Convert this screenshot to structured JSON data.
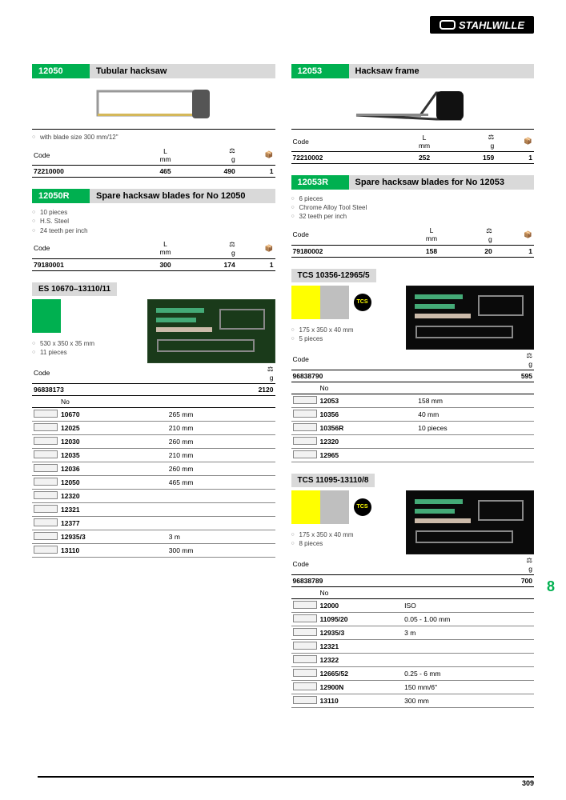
{
  "brand": "STAHLWILLE",
  "page_number": "309",
  "chapter": "8",
  "colors": {
    "accent_green": "#00b050",
    "accent_yellow": "#ffff00",
    "header_gray": "#d9d9d9",
    "swatch_gray": "#bfbfbf"
  },
  "left": [
    {
      "code": "12050",
      "title": "Tubular hacksaw",
      "style": "green",
      "notes": [
        "with blade size 300 mm/12\""
      ],
      "has_prodimg": true,
      "table": {
        "head": [
          "Code",
          "L\nmm",
          "⚖\ng",
          "📦"
        ],
        "align": [
          "l",
          "c",
          "r",
          "r"
        ],
        "rows": [
          [
            "72210000",
            "465",
            "490",
            "1"
          ]
        ]
      }
    },
    {
      "code": "12050R",
      "title": "Spare hacksaw blades for No 12050",
      "style": "green",
      "notes": [
        "10 pieces",
        "H.S. Steel",
        "24 teeth per inch"
      ],
      "table": {
        "head": [
          "Code",
          "L\nmm",
          "⚖\ng",
          "📦"
        ],
        "align": [
          "l",
          "c",
          "r",
          "r"
        ],
        "rows": [
          [
            "79180001",
            "300",
            "174",
            "1"
          ]
        ]
      }
    },
    {
      "code": "ES 10670–13110/11",
      "title": "",
      "style": "gray",
      "swatches": [
        "#00b050"
      ],
      "setimg": "light",
      "notes": [
        "530 x 350 x 35 mm",
        "11 pieces"
      ],
      "table": {
        "head": [
          "Code",
          "⚖\ng"
        ],
        "align": [
          "l",
          "r"
        ],
        "rows": [
          [
            "96838173",
            "2120"
          ]
        ]
      },
      "contents": {
        "head": [
          "",
          "No",
          ""
        ],
        "rows": [
          [
            "icon",
            "10670",
            "265 mm"
          ],
          [
            "icon",
            "12025",
            "210 mm"
          ],
          [
            "icon",
            "12030",
            "260 mm"
          ],
          [
            "icon",
            "12035",
            "210 mm"
          ],
          [
            "icon",
            "12036",
            "260 mm"
          ],
          [
            "icon",
            "12050",
            "465 mm"
          ],
          [
            "icon",
            "12320",
            ""
          ],
          [
            "icon",
            "12321",
            ""
          ],
          [
            "icon",
            "12377",
            ""
          ],
          [
            "icon",
            "12935/3",
            "3 m"
          ],
          [
            "icon",
            "13110",
            "300 mm"
          ]
        ]
      }
    }
  ],
  "right": [
    {
      "code": "12053",
      "title": "Hacksaw frame",
      "style": "green",
      "has_prodimg": true,
      "table": {
        "head": [
          "Code",
          "L\nmm",
          "⚖\ng",
          "📦"
        ],
        "align": [
          "l",
          "c",
          "r",
          "r"
        ],
        "rows": [
          [
            "72210002",
            "252",
            "159",
            "1"
          ]
        ]
      }
    },
    {
      "code": "12053R",
      "title": "Spare hacksaw blades for No 12053",
      "style": "green",
      "notes": [
        "6 pieces",
        "Chrome Alloy Tool Steel",
        "32 teeth per inch"
      ],
      "table": {
        "head": [
          "Code",
          "L\nmm",
          "⚖\ng",
          "📦"
        ],
        "align": [
          "l",
          "c",
          "r",
          "r"
        ],
        "rows": [
          [
            "79180002",
            "158",
            "20",
            "1"
          ]
        ]
      }
    },
    {
      "code": "TCS 10356-12965/5",
      "title": "",
      "style": "gray",
      "swatches": [
        "#ffff00",
        "#bfbfbf"
      ],
      "tcs": true,
      "setimg": "dark",
      "notes": [
        "175 x 350 x 40 mm",
        "5 pieces"
      ],
      "table": {
        "head": [
          "Code",
          "⚖\ng"
        ],
        "align": [
          "l",
          "r"
        ],
        "rows": [
          [
            "96838790",
            "595"
          ]
        ]
      },
      "contents": {
        "head": [
          "",
          "No",
          ""
        ],
        "rows": [
          [
            "icon",
            "12053",
            "158 mm"
          ],
          [
            "icon",
            "10356",
            "40 mm"
          ],
          [
            "icon",
            "10356R",
            "10 pieces"
          ],
          [
            "icon",
            "12320",
            ""
          ],
          [
            "icon",
            "12965",
            ""
          ]
        ]
      }
    },
    {
      "code": "TCS 11095-13110/8",
      "title": "",
      "style": "gray",
      "swatches": [
        "#ffff00",
        "#bfbfbf"
      ],
      "tcs": true,
      "setimg": "dark",
      "notes": [
        "175 x 350 x 40 mm",
        "8 pieces"
      ],
      "table": {
        "head": [
          "Code",
          "⚖\ng"
        ],
        "align": [
          "l",
          "r"
        ],
        "rows": [
          [
            "96838789",
            "700"
          ]
        ]
      },
      "contents": {
        "head": [
          "",
          "No",
          ""
        ],
        "rows": [
          [
            "icon",
            "12000",
            "ISO"
          ],
          [
            "icon",
            "11095/20",
            "0.05 - 1.00 mm"
          ],
          [
            "icon",
            "12935/3",
            "3 m"
          ],
          [
            "icon",
            "12321",
            ""
          ],
          [
            "icon",
            "12322",
            ""
          ],
          [
            "icon",
            "12665/52",
            "0.25 - 6 mm"
          ],
          [
            "icon",
            "12900N",
            "150 mm/6\""
          ],
          [
            "icon",
            "13110",
            "300 mm"
          ]
        ]
      }
    }
  ]
}
